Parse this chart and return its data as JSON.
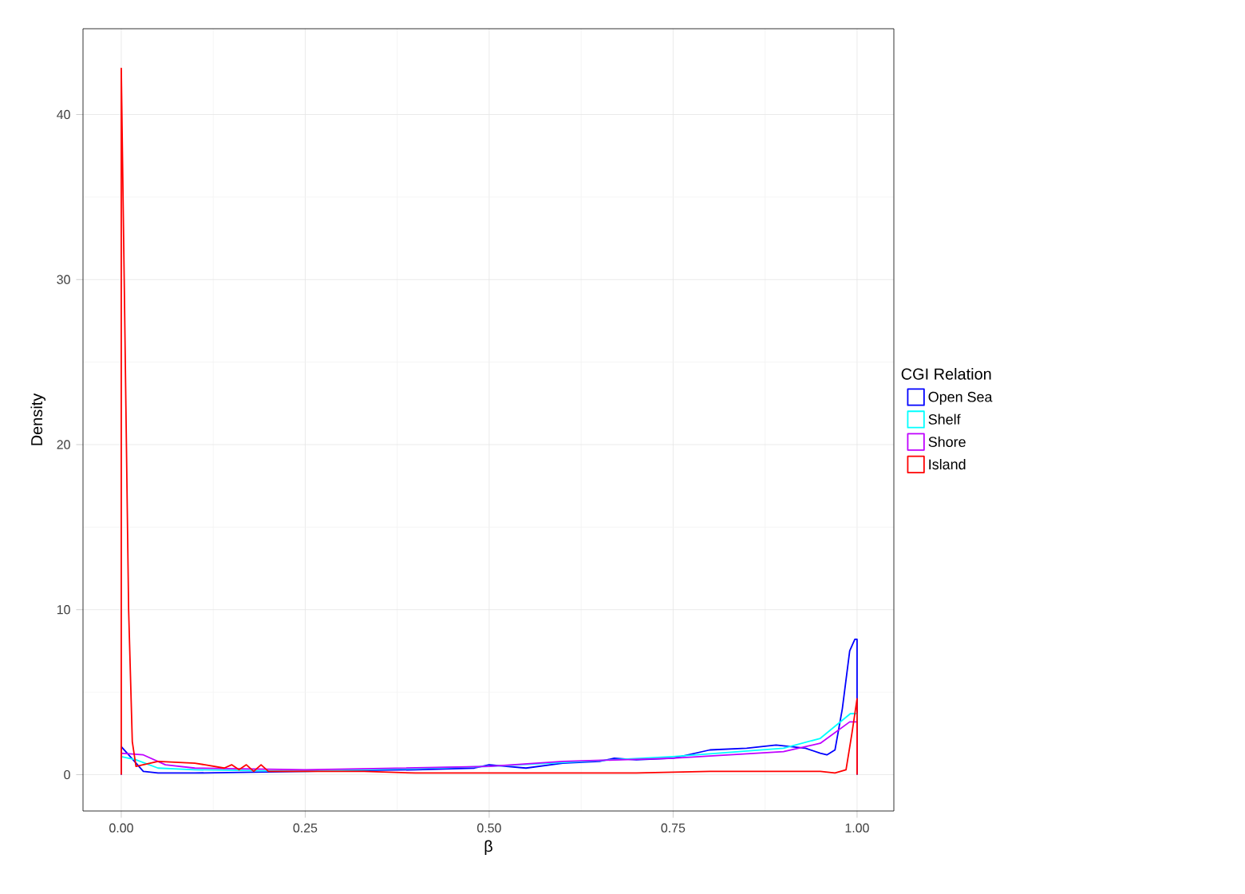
{
  "chart_data": {
    "type": "line",
    "xlabel": "β",
    "ylabel": "Density",
    "legend_title": "CGI Relation",
    "xlim": [
      -0.052,
      1.05
    ],
    "ylim": [
      -2.2,
      45.2
    ],
    "xticks": [
      {
        "value": 0,
        "label": "0.00"
      },
      {
        "value": 0.25,
        "label": "0.25"
      },
      {
        "value": 0.5,
        "label": "0.50"
      },
      {
        "value": 0.75,
        "label": "0.75"
      },
      {
        "value": 1,
        "label": "1.00"
      }
    ],
    "yticks": [
      0,
      10,
      20,
      30,
      40
    ],
    "grid": true,
    "legend": "right",
    "marker": "none",
    "line_style": "solid",
    "series": [
      {
        "name": "Open Sea",
        "color": "#0000ff",
        "x": [
          0,
          0,
          0.01,
          0.03,
          0.05,
          0.1,
          0.25,
          0.4,
          0.48,
          0.5,
          0.55,
          0.6,
          0.65,
          0.67,
          0.7,
          0.75,
          0.8,
          0.85,
          0.89,
          0.93,
          0.95,
          0.959,
          0.97,
          0.98,
          0.99,
          0.997,
          1.0,
          1.0
        ],
        "values": [
          0,
          1.7,
          1.2,
          0.2,
          0.1,
          0.1,
          0.2,
          0.3,
          0.4,
          0.6,
          0.4,
          0.7,
          0.8,
          1.0,
          0.9,
          1.0,
          1.5,
          1.6,
          1.8,
          1.6,
          1.3,
          1.2,
          1.5,
          4.0,
          7.5,
          8.2,
          8.2,
          0
        ]
      },
      {
        "name": "Shelf",
        "color": "#00ffff",
        "x": [
          0,
          0,
          0.02,
          0.05,
          0.1,
          0.25,
          0.5,
          0.75,
          0.9,
          0.95,
          0.991,
          1.0,
          1.0
        ],
        "values": [
          0,
          1.1,
          0.9,
          0.4,
          0.3,
          0.2,
          0.5,
          1.1,
          1.6,
          2.2,
          3.7,
          3.7,
          0
        ]
      },
      {
        "name": "Shore",
        "color": "#bf00ff",
        "x": [
          0,
          0,
          0.03,
          0.06,
          0.1,
          0.25,
          0.5,
          0.6,
          0.75,
          0.9,
          0.95,
          0.99,
          1.0,
          1.0
        ],
        "values": [
          0,
          1.3,
          1.2,
          0.6,
          0.4,
          0.3,
          0.5,
          0.8,
          1.0,
          1.4,
          1.9,
          3.2,
          3.2,
          0
        ]
      },
      {
        "name": "Island",
        "color": "#ff0000",
        "x": [
          0,
          0,
          0.004,
          0.01,
          0.015,
          0.02,
          0.05,
          0.1,
          0.14,
          0.15,
          0.16,
          0.17,
          0.18,
          0.19,
          0.2,
          0.25,
          0.33,
          0.4,
          0.5,
          0.6,
          0.7,
          0.8,
          0.9,
          0.95,
          0.97,
          0.985,
          0.993,
          1.0,
          1.0
        ],
        "values": [
          0,
          42.8,
          30,
          10,
          2,
          0.5,
          0.8,
          0.7,
          0.4,
          0.6,
          0.3,
          0.6,
          0.2,
          0.6,
          0.2,
          0.2,
          0.2,
          0.1,
          0.1,
          0.1,
          0.1,
          0.2,
          0.2,
          0.2,
          0.1,
          0.3,
          2.5,
          4.6,
          0
        ]
      }
    ]
  }
}
